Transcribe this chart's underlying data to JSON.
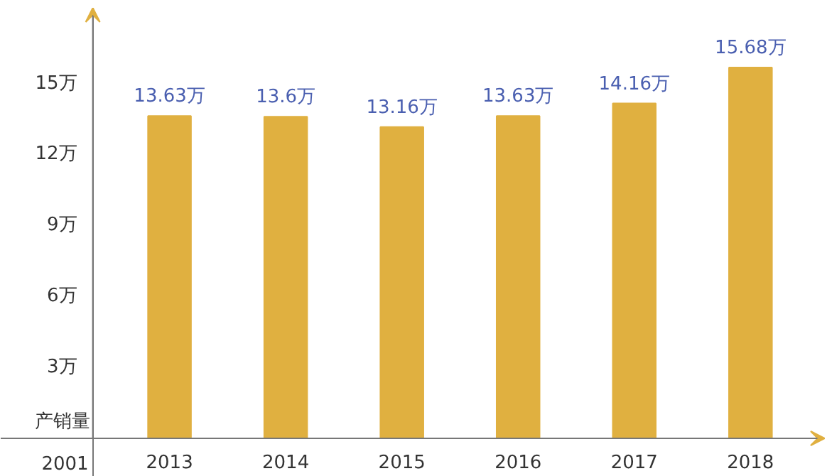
{
  "chart_data": {
    "type": "bar",
    "categories": [
      "2013",
      "2014",
      "2015",
      "2016",
      "2017",
      "2018"
    ],
    "values": [
      13.63,
      13.6,
      13.16,
      13.63,
      14.16,
      15.68
    ],
    "value_labels": [
      "13.63万",
      "13.6万",
      "13.16万",
      "13.63万",
      "14.16万",
      "15.68万"
    ],
    "color": "#e0b040",
    "ylabel": "产销量",
    "ylim": [
      0,
      18.2
    ],
    "yticks": [
      {
        "value": 3,
        "label": "3万"
      },
      {
        "value": 6,
        "label": "6万"
      },
      {
        "value": 9,
        "label": "9万"
      },
      {
        "value": 12,
        "label": "12万"
      },
      {
        "value": 15,
        "label": "15万"
      }
    ],
    "annotations": [
      "2001"
    ],
    "grid": false
  }
}
